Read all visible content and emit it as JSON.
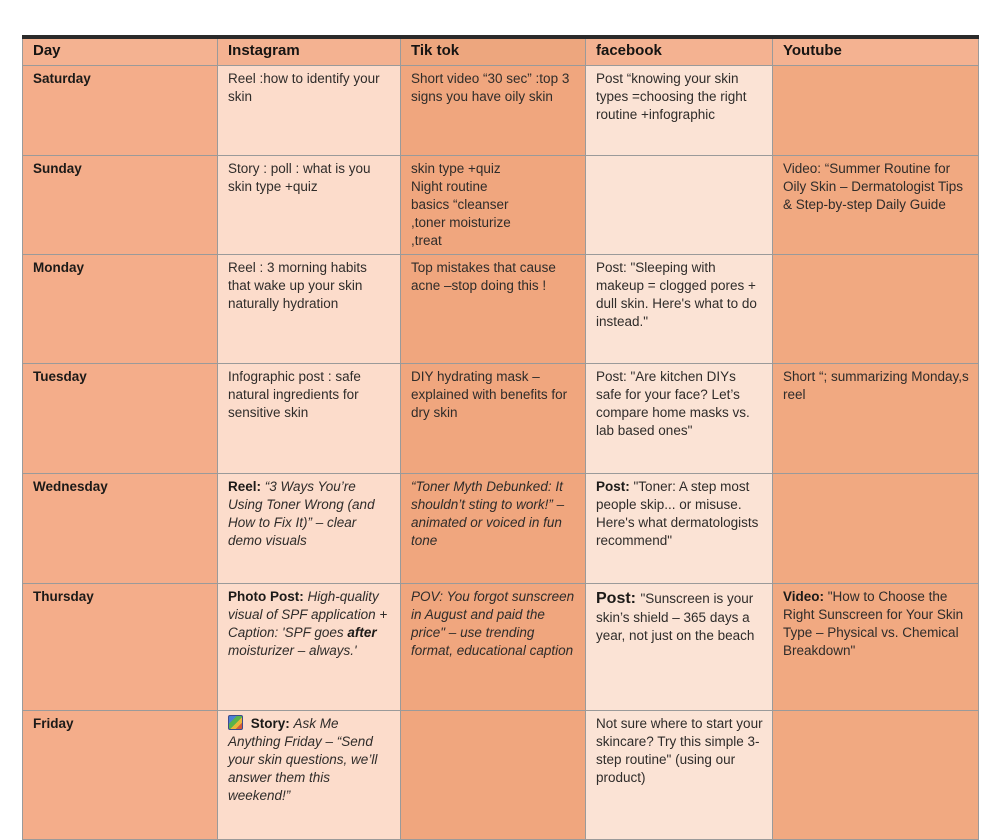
{
  "colors": {
    "header_bg": "#f4b291",
    "header_tiktok_bg": "#eda67e",
    "day_col_bg": "#f4ad8a",
    "instagram_col_bg": "#fcdccb",
    "tiktok_col_bg": "#f0a67e",
    "facebook_col_bg": "#fbe3d5",
    "youtube_col_bg": "#f1a981",
    "grid_border": "#9a9a9a",
    "top_border": "#2a2a2a"
  },
  "table": {
    "columns": [
      {
        "key": "day",
        "label": "Day"
      },
      {
        "key": "instagram",
        "label": "Instagram"
      },
      {
        "key": "tiktok",
        "label": "Tik tok"
      },
      {
        "key": "facebook",
        "label": "facebook"
      },
      {
        "key": "youtube",
        "label": "Youtube"
      }
    ],
    "rows": [
      {
        "day": "Saturday",
        "cells": {
          "instagram": [
            {
              "t": "Reel :how to identify your skin"
            }
          ],
          "tiktok": [
            {
              "t": "Short video “30 sec” :top 3 signs you have oily skin"
            }
          ],
          "facebook": [
            {
              "t": "Post “knowing your skin types =choosing the right routine +infographic"
            }
          ],
          "youtube": []
        }
      },
      {
        "day": "Sunday",
        "cells": {
          "instagram": [
            {
              "t": "Story : poll : what is you skin type +quiz"
            }
          ],
          "tiktok": [
            {
              "t": "skin type +quiz\nNight routine\nbasics “cleanser\n,toner moisturize\n,treat"
            }
          ],
          "facebook": [],
          "youtube": [
            {
              "t": "Video: “Summer Routine for Oily Skin – Dermatologist Tips & Step-by-step Daily Guide"
            }
          ]
        }
      },
      {
        "day": "Monday",
        "cells": {
          "instagram": [
            {
              "t": "Reel : 3 morning habits that wake up your skin naturally hydration"
            }
          ],
          "tiktok": [
            {
              "t": "Top mistakes that cause acne –stop doing this !"
            }
          ],
          "facebook": [
            {
              "t": "Post: \"Sleeping with makeup = clogged pores + dull skin. Here's what to do instead.\""
            }
          ],
          "youtube": []
        }
      },
      {
        "day": "Tuesday",
        "cells": {
          "instagram": [
            {
              "t": "Infographic post : safe natural ingredients for sensitive skin"
            }
          ],
          "tiktok": [
            {
              "t": "DIY hydrating mask – explained with benefits for dry skin"
            }
          ],
          "facebook": [
            {
              "t": "Post: \"Are kitchen DIYs safe for your face? Let’s compare home masks vs. lab based ones\""
            }
          ],
          "youtube": [
            {
              "t": "Short “; summarizing Monday,s reel"
            }
          ]
        }
      },
      {
        "day": "Wednesday",
        "cells": {
          "instagram": [
            {
              "t": "Reel: ",
              "b": true
            },
            {
              "t": "“3 Ways You’re Using Toner Wrong (and How to Fix It)” – clear demo visuals",
              "i": true
            }
          ],
          "tiktok": [
            {
              "t": "“Toner Myth Debunked: It shouldn’t sting to work!” – animated or voiced in fun tone",
              "i": true
            }
          ],
          "facebook": [
            {
              "t": "Post: ",
              "b": true
            },
            {
              "t": "\"Toner: A step most people skip... or misuse. Here's what dermatologists recommend\""
            }
          ],
          "youtube": []
        }
      },
      {
        "day": "Thursday",
        "cells": {
          "instagram": [
            {
              "t": "Photo Post: ",
              "b": true
            },
            {
              "t": "High-quality visual of SPF application + Caption: 'SPF goes ",
              "i": true
            },
            {
              "t": "after",
              "b": true,
              "i": true
            },
            {
              "t": " moisturizer – always.'",
              "i": true
            }
          ],
          "tiktok": [
            {
              "t": "POV: You forgot sunscreen in August and paid the price\" – use trending format, educational caption",
              "i": true
            }
          ],
          "facebook": [
            {
              "t": "Post: ",
              "b": true,
              "lg": true
            },
            {
              "t": "\"Sunscreen is your skin’s shield – 365 days a year, not just on the beach"
            }
          ],
          "youtube": [
            {
              "t": "Video: ",
              "b": true
            },
            {
              "t": "\"How to Choose the Right Sunscreen for Your Skin Type – Physical vs. Chemical Breakdown\""
            }
          ]
        }
      },
      {
        "day": "Friday",
        "cells": {
          "instagram": [
            {
              "icon": "story-icon"
            },
            {
              "t": " Story: ",
              "b": true
            },
            {
              "t": "Ask Me Anything Friday – “Send your skin questions, we’ll answer them this weekend!”",
              "i": true
            }
          ],
          "tiktok": [],
          "facebook": [
            {
              "t": "Not sure where to start your skincare? Try this simple 3-step routine\" (using our product)"
            }
          ],
          "youtube": []
        }
      }
    ]
  }
}
